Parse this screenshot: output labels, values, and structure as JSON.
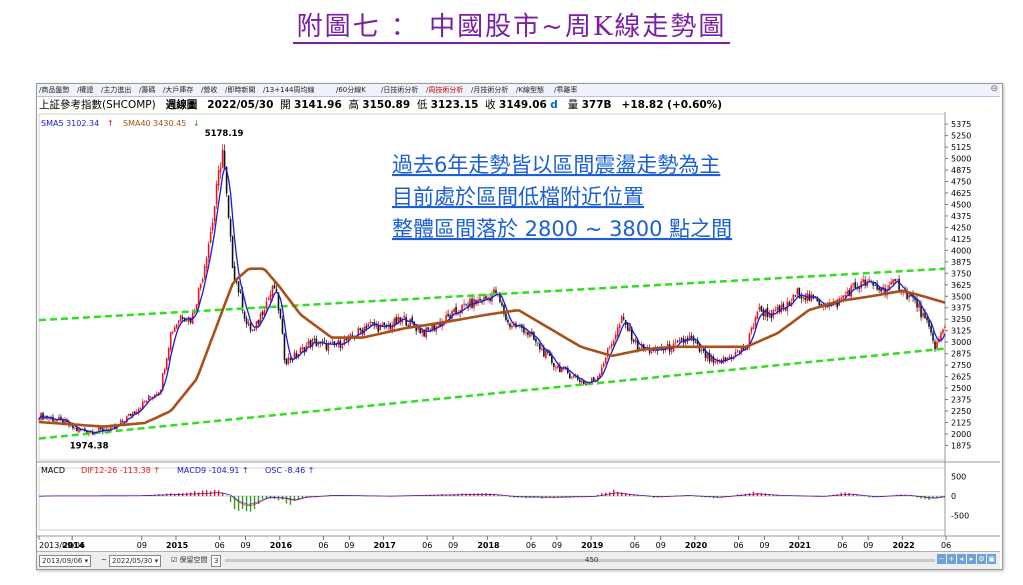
{
  "page_title": "附圖七 ： 中國股市~周K線走勢圖",
  "tabs": [
    "商品盤勢",
    "權證",
    "主力進出",
    "籌碼",
    "大戶庫存",
    "營收",
    "即時新聞",
    "13+144周均線",
    "60分線K",
    "日技術分析",
    "周技術分析",
    "月技術分析",
    "K線型態",
    "乖離率"
  ],
  "active_tab_index": 10,
  "quote": {
    "name": "上証參考指數(SHCOMP)",
    "period": "週線圖",
    "date": "2022/05/30",
    "open_label": "開",
    "open": "3141.96",
    "high_label": "高",
    "high": "3150.89",
    "low_label": "低",
    "low": "3123.15",
    "close_label": "收",
    "close": "3149.06",
    "close_flag": "d",
    "volume_label": "量",
    "volume": "377B",
    "change": "+18.82 (+0.60%)"
  },
  "legend": {
    "sma5": "SMA5 3102.34",
    "sma5_arrow": "↑",
    "sma40": "SMA40 3430.45",
    "sma40_arrow": "↓",
    "macd_title": "MACD",
    "dif": "DIF12-26 -113.38",
    "dif_arrow": "↑",
    "macd9": "MACD9 -104.91",
    "macd9_arrow": "↑",
    "osc": "OSC -8.46",
    "osc_arrow": "↑"
  },
  "annotation_lines": [
    "過去6年走勢皆以區間震盪走勢為主",
    "目前處於區間低檔附近位置",
    "整體區間落於 2800 ~ 3800 點之間"
  ],
  "bottom_bar": {
    "from": "2013/09/06",
    "to": "2022/05/30",
    "mode": "保留空間",
    "count": "3",
    "scroll_value": "450",
    "range_sep": "~"
  },
  "colors": {
    "title": "#7a1fa2",
    "up_candle": "#e8141e",
    "down_candle": "#111111",
    "sma5": "#1a1adb",
    "sma40": "#a9501a",
    "channel": "#33dd22",
    "annotation": "#1a5fd4",
    "macd_pos": "#e8141e",
    "macd_neg": "#2e9e1a"
  },
  "chart_data": {
    "type": "candlestick",
    "symbol": "SHCOMP",
    "period": "weekly",
    "y_price_ticks": [
      1875,
      2000,
      2125,
      2250,
      2375,
      2500,
      2625,
      2750,
      2875,
      3000,
      3125,
      3250,
      3375,
      3500,
      3625,
      3750,
      3875,
      4000,
      4125,
      4250,
      4375,
      4500,
      4625,
      4750,
      4875,
      5000,
      5125,
      5250,
      5375
    ],
    "y_price_tick_labels": [
      "1875",
      "2000",
      "2125",
      "2250",
      "2375",
      "2500",
      "2625",
      "2750",
      "2875",
      "3000",
      "3125",
      "3250",
      "3375",
      "3500",
      "3625",
      "3750",
      "3875",
      "4000",
      "4125",
      "4250",
      "4375",
      "4500",
      "4625",
      "4750",
      "4875",
      "5000",
      "5125",
      "5250",
      "5375"
    ],
    "y_price_range": [
      1760,
      5420
    ],
    "x_range": [
      2013.68,
      2022.41
    ],
    "x_ticks": [
      {
        "t": 2013.68,
        "label": "2013/09/06"
      },
      {
        "t": 2014.0,
        "label": "2014"
      },
      {
        "t": 2014.67,
        "label": "09"
      },
      {
        "t": 2015.0,
        "label": "2015"
      },
      {
        "t": 2015.42,
        "label": "06"
      },
      {
        "t": 2015.67,
        "label": "09"
      },
      {
        "t": 2016.0,
        "label": "2016"
      },
      {
        "t": 2016.42,
        "label": "06"
      },
      {
        "t": 2016.67,
        "label": "09"
      },
      {
        "t": 2017.0,
        "label": "2017"
      },
      {
        "t": 2017.42,
        "label": "06"
      },
      {
        "t": 2017.67,
        "label": "09"
      },
      {
        "t": 2018.0,
        "label": "2018"
      },
      {
        "t": 2018.42,
        "label": "06"
      },
      {
        "t": 2018.67,
        "label": "09"
      },
      {
        "t": 2019.0,
        "label": "2019"
      },
      {
        "t": 2019.42,
        "label": "06"
      },
      {
        "t": 2019.67,
        "label": "09"
      },
      {
        "t": 2020.0,
        "label": "2020"
      },
      {
        "t": 2020.42,
        "label": "06"
      },
      {
        "t": 2020.67,
        "label": "09"
      },
      {
        "t": 2021.0,
        "label": "2021"
      },
      {
        "t": 2021.42,
        "label": "06"
      },
      {
        "t": 2021.67,
        "label": "09"
      },
      {
        "t": 2022.0,
        "label": "2022"
      },
      {
        "t": 2022.42,
        "label": "06"
      }
    ],
    "close_path": [
      [
        2013.68,
        2200
      ],
      [
        2013.9,
        2140
      ],
      [
        2014.05,
        2040
      ],
      [
        2014.2,
        2030
      ],
      [
        2014.4,
        2050
      ],
      [
        2014.55,
        2200
      ],
      [
        2014.7,
        2350
      ],
      [
        2014.85,
        2500
      ],
      [
        2014.95,
        3100
      ],
      [
        2015.05,
        3300
      ],
      [
        2015.15,
        3250
      ],
      [
        2015.25,
        3700
      ],
      [
        2015.35,
        4300
      ],
      [
        2015.42,
        4900
      ],
      [
        2015.45,
        5100
      ],
      [
        2015.5,
        4400
      ],
      [
        2015.55,
        3800
      ],
      [
        2015.62,
        3500
      ],
      [
        2015.68,
        3200
      ],
      [
        2015.75,
        3100
      ],
      [
        2015.85,
        3400
      ],
      [
        2015.95,
        3600
      ],
      [
        2016.0,
        3300
      ],
      [
        2016.05,
        2800
      ],
      [
        2016.15,
        2850
      ],
      [
        2016.3,
        3000
      ],
      [
        2016.5,
        2950
      ],
      [
        2016.7,
        3050
      ],
      [
        2016.85,
        3200
      ],
      [
        2017.0,
        3150
      ],
      [
        2017.2,
        3250
      ],
      [
        2017.4,
        3100
      ],
      [
        2017.6,
        3250
      ],
      [
        2017.8,
        3400
      ],
      [
        2018.0,
        3480
      ],
      [
        2018.08,
        3550
      ],
      [
        2018.2,
        3200
      ],
      [
        2018.35,
        3150
      ],
      [
        2018.5,
        2950
      ],
      [
        2018.65,
        2750
      ],
      [
        2018.8,
        2650
      ],
      [
        2018.95,
        2550
      ],
      [
        2019.05,
        2600
      ],
      [
        2019.2,
        3000
      ],
      [
        2019.3,
        3250
      ],
      [
        2019.45,
        2950
      ],
      [
        2019.6,
        2900
      ],
      [
        2019.8,
        2950
      ],
      [
        2019.95,
        3050
      ],
      [
        2020.05,
        2900
      ],
      [
        2020.2,
        2750
      ],
      [
        2020.35,
        2850
      ],
      [
        2020.5,
        2950
      ],
      [
        2020.6,
        3350
      ],
      [
        2020.75,
        3300
      ],
      [
        2020.9,
        3400
      ],
      [
        2021.0,
        3550
      ],
      [
        2021.15,
        3450
      ],
      [
        2021.35,
        3400
      ],
      [
        2021.5,
        3580
      ],
      [
        2021.65,
        3650
      ],
      [
        2021.8,
        3570
      ],
      [
        2021.95,
        3640
      ],
      [
        2022.05,
        3520
      ],
      [
        2022.15,
        3400
      ],
      [
        2022.25,
        3150
      ],
      [
        2022.32,
        2950
      ],
      [
        2022.38,
        3100
      ],
      [
        2022.41,
        3149
      ]
    ],
    "sma40_path": [
      [
        2013.68,
        2130
      ],
      [
        2014.3,
        2080
      ],
      [
        2014.7,
        2120
      ],
      [
        2014.95,
        2250
      ],
      [
        2015.2,
        2600
      ],
      [
        2015.4,
        3200
      ],
      [
        2015.55,
        3650
      ],
      [
        2015.7,
        3800
      ],
      [
        2015.85,
        3800
      ],
      [
        2016.0,
        3600
      ],
      [
        2016.2,
        3300
      ],
      [
        2016.5,
        3050
      ],
      [
        2016.8,
        3050
      ],
      [
        2017.2,
        3150
      ],
      [
        2017.6,
        3220
      ],
      [
        2018.0,
        3300
      ],
      [
        2018.3,
        3350
      ],
      [
        2018.6,
        3150
      ],
      [
        2018.9,
        2950
      ],
      [
        2019.2,
        2850
      ],
      [
        2019.5,
        2920
      ],
      [
        2019.8,
        2950
      ],
      [
        2020.2,
        2950
      ],
      [
        2020.5,
        2950
      ],
      [
        2020.8,
        3100
      ],
      [
        2021.1,
        3350
      ],
      [
        2021.4,
        3450
      ],
      [
        2021.7,
        3500
      ],
      [
        2022.0,
        3560
      ],
      [
        2022.2,
        3500
      ],
      [
        2022.41,
        3430
      ]
    ],
    "channel_lines": [
      {
        "from": [
          2013.68,
          1950
        ],
        "to": [
          2022.41,
          2930
        ]
      },
      {
        "from": [
          2013.68,
          3240
        ],
        "to": [
          2022.41,
          3800
        ]
      }
    ],
    "price_labels": [
      {
        "t": 2015.45,
        "value": 5178.19,
        "text": "5178.19",
        "pos": "above"
      },
      {
        "t": 2014.15,
        "value": 1974.38,
        "text": "1974.38",
        "pos": "below"
      }
    ],
    "macd": {
      "y_range": [
        -720,
        620
      ],
      "y_ticks": [
        -500,
        0,
        500
      ],
      "y_tick_labels": [
        "-500",
        "0",
        "500"
      ],
      "osc_profile": [
        [
          2013.68,
          0
        ],
        [
          2014.6,
          10
        ],
        [
          2014.9,
          60
        ],
        [
          2015.2,
          110
        ],
        [
          2015.38,
          160
        ],
        [
          2015.48,
          40
        ],
        [
          2015.55,
          -250
        ],
        [
          2015.65,
          -450
        ],
        [
          2015.75,
          -280
        ],
        [
          2015.85,
          -60
        ],
        [
          2016.0,
          -100
        ],
        [
          2016.1,
          -200
        ],
        [
          2016.2,
          -60
        ],
        [
          2016.5,
          30
        ],
        [
          2017.0,
          -10
        ],
        [
          2017.5,
          40
        ],
        [
          2018.0,
          80
        ],
        [
          2018.25,
          -40
        ],
        [
          2018.6,
          -60
        ],
        [
          2019.0,
          -20
        ],
        [
          2019.2,
          150
        ],
        [
          2019.35,
          60
        ],
        [
          2019.6,
          -40
        ],
        [
          2019.9,
          20
        ],
        [
          2020.2,
          -60
        ],
        [
          2020.55,
          100
        ],
        [
          2020.8,
          20
        ],
        [
          2021.2,
          -20
        ],
        [
          2021.45,
          90
        ],
        [
          2021.7,
          -40
        ],
        [
          2022.0,
          40
        ],
        [
          2022.25,
          -100
        ],
        [
          2022.41,
          -10
        ]
      ]
    }
  }
}
